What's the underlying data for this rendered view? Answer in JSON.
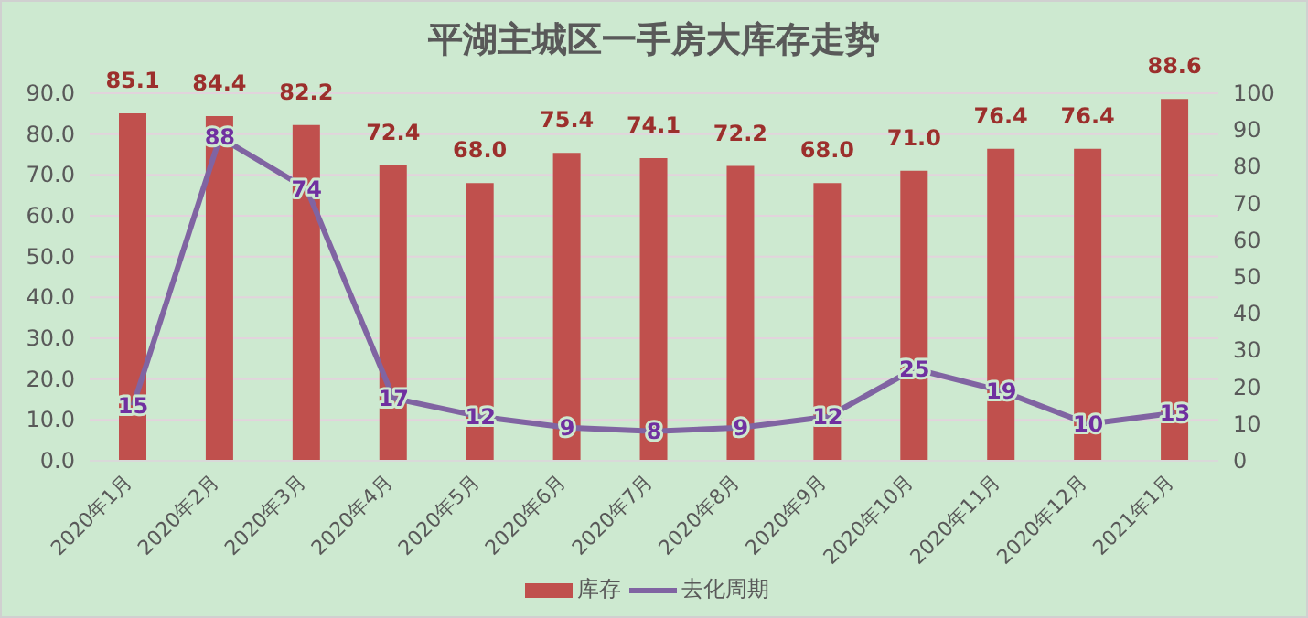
{
  "chart_data": {
    "type": "bar",
    "title": "平湖主城区一手房大库存走势",
    "categories": [
      "2020年1月",
      "2020年2月",
      "2020年3月",
      "2020年4月",
      "2020年5月",
      "2020年6月",
      "2020年7月",
      "2020年8月",
      "2020年9月",
      "2020年10月",
      "2020年11月",
      "2020年12月",
      "2021年1月"
    ],
    "series": [
      {
        "name": "库存",
        "color": "#c0504d",
        "values": [
          85.1,
          84.4,
          82.2,
          72.4,
          68.0,
          75.4,
          74.1,
          72.2,
          68.0,
          71.0,
          76.4,
          76.4,
          88.6
        ],
        "value_labels": [
          "85.1",
          "84.4",
          "82.2",
          "72.4",
          "68.0",
          "75.4",
          "74.1",
          "72.2",
          "68.0",
          "71.0",
          "76.4",
          "76.4",
          "88.6"
        ]
      },
      {
        "name": "去化周期",
        "type": "line",
        "axis": "y2",
        "color": "#8064a2",
        "values": [
          15,
          88,
          74,
          17,
          12,
          9,
          8,
          9,
          12,
          25,
          19,
          10,
          13
        ],
        "value_labels": [
          "15",
          "88",
          "74",
          "17",
          "12",
          "9",
          "8",
          "9",
          "12",
          "25",
          "19",
          "10",
          "13"
        ]
      }
    ],
    "ylim": [
      0,
      90
    ],
    "yticks": [
      {
        "value": 0,
        "label": "0.0"
      },
      {
        "value": 10,
        "label": "10.0"
      },
      {
        "value": 20,
        "label": "20.0"
      },
      {
        "value": 30,
        "label": "30.0"
      },
      {
        "value": 40,
        "label": "40.0"
      },
      {
        "value": 50,
        "label": "50.0"
      },
      {
        "value": 60,
        "label": "60.0"
      },
      {
        "value": 70,
        "label": "70.0"
      },
      {
        "value": 80,
        "label": "80.0"
      },
      {
        "value": 90,
        "label": "90.0"
      }
    ],
    "y2lim": [
      0,
      100
    ],
    "y2ticks": [
      0,
      10,
      20,
      30,
      40,
      50,
      60,
      70,
      80,
      90,
      100
    ],
    "grid": "y",
    "legend": "bottom",
    "marker": "none",
    "line_style": "solid"
  }
}
